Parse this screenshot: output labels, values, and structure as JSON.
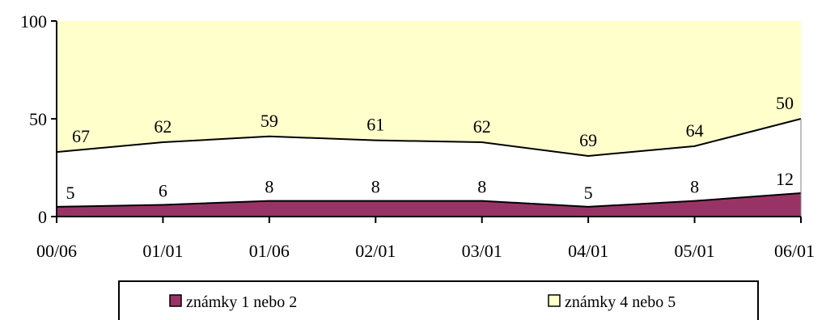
{
  "chart_data": {
    "type": "area",
    "stacked": true,
    "categories": [
      "00/06",
      "01/01",
      "01/06",
      "02/01",
      "03/01",
      "04/01",
      "05/01",
      "06/01"
    ],
    "ylim": [
      0,
      100
    ],
    "yticks": [
      "0",
      "50",
      "100"
    ],
    "series": [
      {
        "name": "známky 1 nebo 2",
        "values": [
          5,
          6,
          8,
          8,
          8,
          5,
          8,
          12
        ],
        "color": "#993366"
      },
      {
        "name": "",
        "values": [
          28,
          32,
          33,
          31,
          30,
          26,
          28,
          38
        ],
        "color": "#ffffff"
      },
      {
        "name": "známky 4 nebo 5",
        "values": [
          67,
          62,
          59,
          61,
          62,
          69,
          64,
          50
        ],
        "color": "#ffffcc"
      }
    ],
    "data_labels": {
      "bottom": [
        "5",
        "6",
        "8",
        "8",
        "8",
        "5",
        "8",
        "12"
      ],
      "top": [
        "67",
        "62",
        "59",
        "61",
        "62",
        "69",
        "64",
        "50"
      ]
    },
    "legend": {
      "position": "bottom",
      "items": [
        {
          "label": "známky 1 nebo 2",
          "color": "#993366"
        },
        {
          "label": "známky 4 nebo 5",
          "color": "#ffffcc"
        }
      ]
    },
    "grid": false
  }
}
